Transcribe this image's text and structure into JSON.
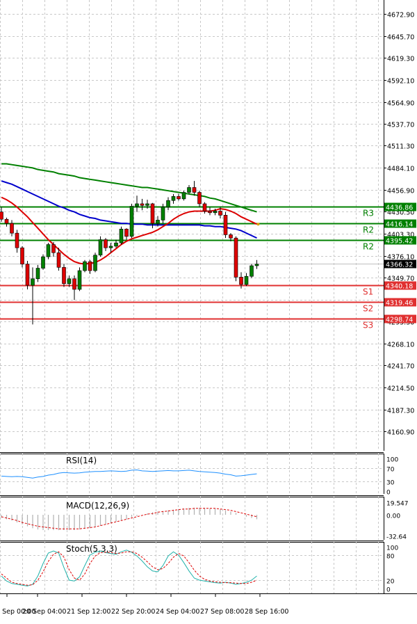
{
  "chart_data": {
    "type": "candlestick",
    "price_axis": {
      "ticks": [
        "4672.90",
        "4645.70",
        "4619.30",
        "4592.10",
        "4564.90",
        "4537.70",
        "4511.30",
        "4484.10",
        "4456.90",
        "4430.50",
        "4403.30",
        "4376.10",
        "4349.70",
        "4322.50",
        "4295.30",
        "4268.10",
        "4241.70",
        "4214.50",
        "4187.30",
        "4160.90"
      ],
      "ylim": [
        4160.9,
        4686
      ]
    },
    "time_axis": {
      "labels": [
        "20 Sep 00:00",
        "20 Sep 04:00",
        "21 Sep 12:00",
        "22 Sep 20:00",
        "24 Sep 04:00",
        "27 Sep 08:00",
        "28 Sep 16:00"
      ]
    },
    "candles": [
      {
        "o": 4430,
        "h": 4436,
        "l": 4418,
        "c": 4421
      },
      {
        "o": 4421,
        "h": 4423,
        "l": 4412,
        "c": 4416
      },
      {
        "o": 4416,
        "h": 4420,
        "l": 4400,
        "c": 4404
      },
      {
        "o": 4404,
        "h": 4408,
        "l": 4380,
        "c": 4386
      },
      {
        "o": 4386,
        "h": 4388,
        "l": 4362,
        "c": 4366
      },
      {
        "o": 4366,
        "h": 4370,
        "l": 4335,
        "c": 4340
      },
      {
        "o": 4340,
        "h": 4362,
        "l": 4292,
        "c": 4348
      },
      {
        "o": 4348,
        "h": 4365,
        "l": 4344,
        "c": 4361
      },
      {
        "o": 4361,
        "h": 4378,
        "l": 4359,
        "c": 4375
      },
      {
        "o": 4375,
        "h": 4392,
        "l": 4372,
        "c": 4390
      },
      {
        "o": 4390,
        "h": 4393,
        "l": 4375,
        "c": 4380
      },
      {
        "o": 4380,
        "h": 4386,
        "l": 4358,
        "c": 4362
      },
      {
        "o": 4362,
        "h": 4366,
        "l": 4338,
        "c": 4342
      },
      {
        "o": 4342,
        "h": 4352,
        "l": 4338,
        "c": 4348
      },
      {
        "o": 4348,
        "h": 4352,
        "l": 4322,
        "c": 4335
      },
      {
        "o": 4335,
        "h": 4362,
        "l": 4333,
        "c": 4358
      },
      {
        "o": 4358,
        "h": 4371,
        "l": 4356,
        "c": 4369
      },
      {
        "o": 4369,
        "h": 4371,
        "l": 4354,
        "c": 4358
      },
      {
        "o": 4358,
        "h": 4380,
        "l": 4356,
        "c": 4377
      },
      {
        "o": 4377,
        "h": 4400,
        "l": 4375,
        "c": 4396
      },
      {
        "o": 4396,
        "h": 4398,
        "l": 4382,
        "c": 4386
      },
      {
        "o": 4386,
        "h": 4392,
        "l": 4380,
        "c": 4388
      },
      {
        "o": 4388,
        "h": 4396,
        "l": 4386,
        "c": 4392
      },
      {
        "o": 4392,
        "h": 4412,
        "l": 4390,
        "c": 4409
      },
      {
        "o": 4409,
        "h": 4410,
        "l": 4396,
        "c": 4400
      },
      {
        "o": 4400,
        "h": 4440,
        "l": 4398,
        "c": 4437
      },
      {
        "o": 4437,
        "h": 4450,
        "l": 4430,
        "c": 4440
      },
      {
        "o": 4440,
        "h": 4446,
        "l": 4432,
        "c": 4438
      },
      {
        "o": 4438,
        "h": 4445,
        "l": 4434,
        "c": 4440
      },
      {
        "o": 4440,
        "h": 4441,
        "l": 4410,
        "c": 4416
      },
      {
        "o": 4416,
        "h": 4425,
        "l": 4412,
        "c": 4420
      },
      {
        "o": 4420,
        "h": 4440,
        "l": 4416,
        "c": 4436
      },
      {
        "o": 4436,
        "h": 4448,
        "l": 4432,
        "c": 4444
      },
      {
        "o": 4444,
        "h": 4452,
        "l": 4440,
        "c": 4449
      },
      {
        "o": 4449,
        "h": 4452,
        "l": 4444,
        "c": 4446
      },
      {
        "o": 4446,
        "h": 4456,
        "l": 4444,
        "c": 4454
      },
      {
        "o": 4454,
        "h": 4463,
        "l": 4452,
        "c": 4460
      },
      {
        "o": 4460,
        "h": 4468,
        "l": 4450,
        "c": 4454
      },
      {
        "o": 4454,
        "h": 4456,
        "l": 4436,
        "c": 4440
      },
      {
        "o": 4440,
        "h": 4442,
        "l": 4428,
        "c": 4431
      },
      {
        "o": 4431,
        "h": 4436,
        "l": 4426,
        "c": 4429
      },
      {
        "o": 4429,
        "h": 4434,
        "l": 4426,
        "c": 4431
      },
      {
        "o": 4431,
        "h": 4436,
        "l": 4422,
        "c": 4426
      },
      {
        "o": 4426,
        "h": 4430,
        "l": 4398,
        "c": 4402
      },
      {
        "o": 4402,
        "h": 4404,
        "l": 4394,
        "c": 4398
      },
      {
        "o": 4398,
        "h": 4400,
        "l": 4345,
        "c": 4350
      },
      {
        "o": 4350,
        "h": 4356,
        "l": 4336,
        "c": 4341
      },
      {
        "o": 4341,
        "h": 4355,
        "l": 4339,
        "c": 4351
      },
      {
        "o": 4351,
        "h": 4366,
        "l": 4349,
        "c": 4364
      },
      {
        "o": 4364,
        "h": 4371,
        "l": 4360,
        "c": 4366
      }
    ],
    "moving_averages": [
      {
        "color": "#008000",
        "values": [
          4489,
          4489,
          4488,
          4487,
          4486,
          4485,
          4484,
          4482,
          4481,
          4480,
          4479,
          4477,
          4476,
          4475,
          4474,
          4472,
          4471,
          4470,
          4469,
          4468,
          4467,
          4466,
          4465,
          4464,
          4463,
          4462,
          4461,
          4460,
          4460,
          4459,
          4458,
          4457,
          4456,
          4455,
          4454,
          4453,
          4452,
          4451,
          4450,
          4449,
          4447,
          4446,
          4444,
          4442,
          4440,
          4438,
          4436,
          4434,
          4432,
          4430
        ]
      },
      {
        "color": "#0000cc",
        "values": [
          4468,
          4466,
          4464,
          4461,
          4458,
          4455,
          4452,
          4449,
          4446,
          4443,
          4440,
          4437,
          4435,
          4432,
          4430,
          4427,
          4425,
          4423,
          4422,
          4420,
          4419,
          4418,
          4417,
          4416,
          4416,
          4415,
          4415,
          4415,
          4414,
          4414,
          4414,
          4414,
          4414,
          4414,
          4414,
          4414,
          4414,
          4414,
          4414,
          4413,
          4413,
          4412,
          4412,
          4411,
          4410,
          4409,
          4407,
          4404,
          4401,
          4398
        ]
      },
      {
        "color": "#dd0000",
        "values": [
          4448,
          4445,
          4441,
          4436,
          4430,
          4424,
          4417,
          4410,
          4403,
          4396,
          4390,
          4384,
          4378,
          4373,
          4369,
          4367,
          4366,
          4367,
          4368,
          4371,
          4375,
          4380,
          4385,
          4390,
          4394,
          4397,
          4399,
          4401,
          4403,
          4405,
          4408,
          4412,
          4416,
          4421,
          4425,
          4428,
          4430,
          4431,
          4431,
          4431,
          4431,
          4432,
          4434,
          4433,
          4431,
          4428,
          4424,
          4421,
          4418,
          4415
        ]
      }
    ],
    "levels": [
      {
        "label": "R3",
        "value": 4436.86,
        "tag": "4436.86",
        "color": "#008000"
      },
      {
        "label": "R2",
        "value": 4416.14,
        "tag": "4416.14",
        "color": "#008000"
      },
      {
        "label": "R2",
        "value": 4395.42,
        "tag": "4395.42",
        "color": "#008000"
      },
      {
        "label": "S1",
        "value": 4340.18,
        "tag": "4340.18",
        "color": "#e03030"
      },
      {
        "label": "S2",
        "value": 4319.46,
        "tag": "4319.46",
        "color": "#e03030"
      },
      {
        "label": "S3",
        "value": 4298.74,
        "tag": "4298.74",
        "color": "#e03030"
      }
    ],
    "current_price": {
      "value": 4366.32,
      "tag": "4366.32"
    },
    "rsi": {
      "title": "RSI(14)",
      "ticks": [
        "100",
        "70",
        "30",
        "0"
      ],
      "values": [
        46,
        45,
        44,
        45,
        44,
        42,
        40,
        43,
        45,
        49,
        51,
        55,
        57,
        56,
        55,
        56,
        58,
        59,
        60,
        60,
        61,
        62,
        61,
        60,
        61,
        64,
        65,
        62,
        61,
        60,
        61,
        62,
        63,
        62,
        62,
        63,
        64,
        62,
        60,
        59,
        58,
        57,
        55,
        52,
        50,
        46,
        47,
        49,
        51,
        53
      ]
    },
    "macd": {
      "title": "MACD(12,26,9)",
      "ticks": [
        "19.547",
        "0.00",
        "-32.64"
      ],
      "histogram": [
        -5,
        -7,
        -9,
        -12,
        -15,
        -18,
        -21,
        -23,
        -24,
        -24,
        -24,
        -24,
        -24,
        -24,
        -24,
        -23,
        -22,
        -21,
        -19,
        -17,
        -15,
        -13,
        -11,
        -9,
        -7,
        -4,
        -2,
        0,
        2,
        4,
        5,
        6,
        7,
        8,
        9,
        10,
        11,
        11,
        11,
        11,
        10,
        10,
        9,
        7,
        5,
        3,
        0,
        -3,
        -5,
        -7
      ],
      "signal": [
        -3,
        -5,
        -7,
        -9,
        -12,
        -14,
        -16,
        -18,
        -19,
        -20,
        -21,
        -22,
        -22,
        -22,
        -22,
        -22,
        -21,
        -20,
        -19,
        -17,
        -15,
        -13,
        -11,
        -9,
        -7,
        -5,
        -3,
        -1,
        1,
        2,
        4,
        5,
        6,
        7,
        8,
        9,
        9,
        10,
        10,
        10,
        10,
        10,
        9,
        8,
        7,
        5,
        3,
        1,
        -1,
        -3
      ]
    },
    "stoch": {
      "title": "Stoch(5,3,3)",
      "ticks": [
        "100",
        "80",
        "20",
        "0"
      ],
      "main": [
        30,
        18,
        12,
        10,
        8,
        6,
        10,
        30,
        60,
        85,
        90,
        85,
        50,
        20,
        18,
        28,
        55,
        80,
        87,
        90,
        86,
        84,
        82,
        88,
        92,
        87,
        78,
        66,
        52,
        42,
        40,
        55,
        78,
        88,
        80,
        62,
        42,
        25,
        20,
        18,
        16,
        14,
        13,
        15,
        13,
        10,
        12,
        15,
        20,
        30
      ],
      "signal": [
        35,
        25,
        15,
        12,
        10,
        8,
        9,
        20,
        40,
        65,
        82,
        88,
        75,
        45,
        25,
        20,
        35,
        60,
        78,
        86,
        87,
        86,
        84,
        85,
        88,
        88,
        84,
        75,
        64,
        52,
        45,
        48,
        60,
        75,
        84,
        78,
        62,
        44,
        30,
        22,
        18,
        16,
        15,
        14,
        14,
        13,
        12,
        12,
        15,
        20
      ]
    }
  }
}
